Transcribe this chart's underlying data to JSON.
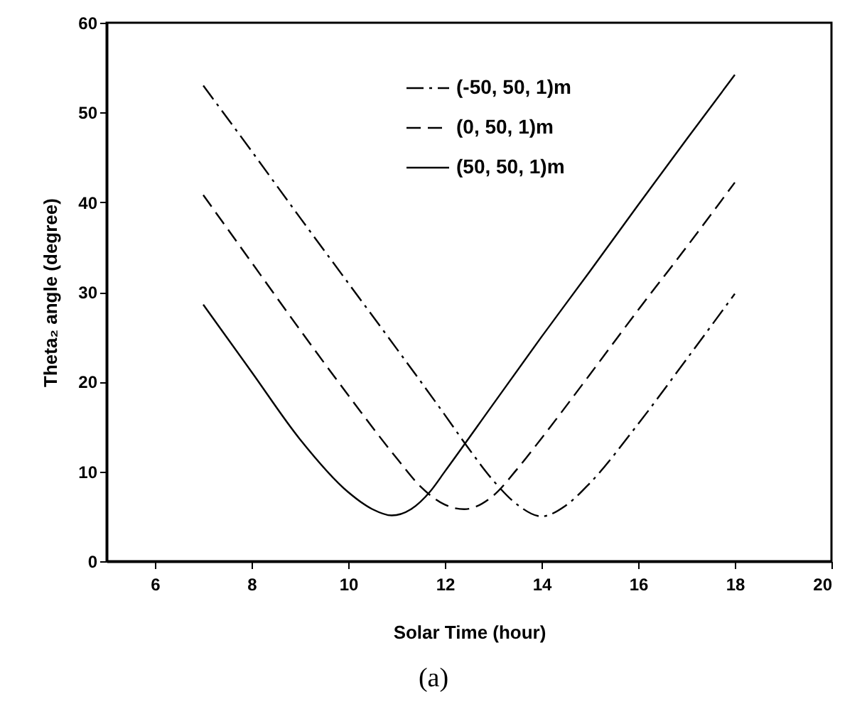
{
  "chart_data": {
    "type": "line",
    "xlabel": "Solar Time (hour)",
    "ylabel": "Theta₂ angle (degree)",
    "annotations": [
      "(a)"
    ],
    "xlim": [
      5,
      20
    ],
    "xticks": [
      6,
      8,
      10,
      12,
      14,
      16,
      18,
      20
    ],
    "ylim": [
      0,
      60
    ],
    "yticks": [
      0,
      10,
      20,
      30,
      40,
      50,
      60
    ],
    "grid": false,
    "legend": "top",
    "marker": "none",
    "series": [
      {
        "name": "(-50, 50, 1)m",
        "color": "#000000",
        "line_style": "dashdot",
        "x": [
          7,
          8,
          9,
          10,
          11,
          12,
          12.5,
          13,
          13.5,
          14,
          14.5,
          15,
          16,
          17,
          18
        ],
        "values": [
          53,
          45.7,
          38.3,
          31,
          23.7,
          16.3,
          12.5,
          9,
          6.3,
          5,
          6.2,
          8.7,
          15.3,
          22.5,
          29.8
        ]
      },
      {
        "name": "(0, 50, 1)m",
        "color": "#000000",
        "line_style": "dashed",
        "x": [
          7,
          8,
          9,
          10,
          11,
          11.5,
          12,
          12.4,
          13,
          13.5,
          14,
          15,
          16,
          17,
          18
        ],
        "values": [
          40.8,
          33.3,
          25.8,
          18.5,
          11.5,
          8.3,
          6.3,
          5.8,
          7.3,
          10.3,
          13.7,
          20.8,
          28,
          35,
          42.2
        ]
      },
      {
        "name": "(50, 50, 1)m",
        "color": "#000000",
        "line_style": "solid",
        "x": [
          7,
          8,
          9,
          10,
          10.5,
          10.9,
          11.3,
          11.7,
          12,
          13,
          14,
          15,
          16,
          17,
          18
        ],
        "values": [
          28.6,
          21.1,
          13.6,
          7.7,
          5.8,
          5.1,
          5.8,
          7.8,
          10,
          17.5,
          25,
          32.3,
          39.7,
          47,
          54.2
        ]
      }
    ]
  }
}
